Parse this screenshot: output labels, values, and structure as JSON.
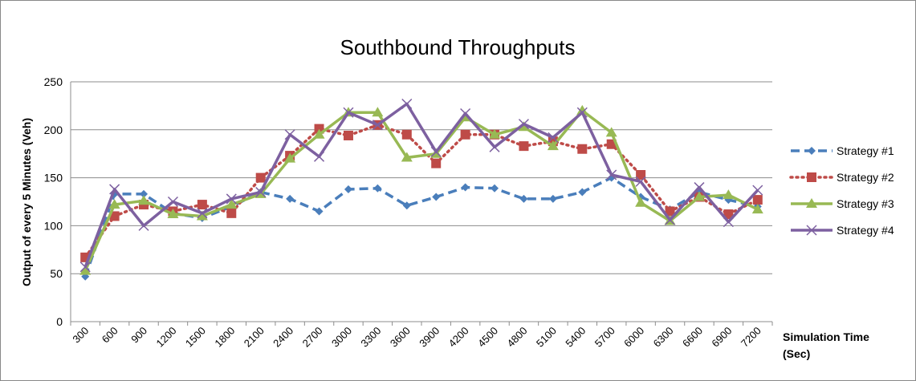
{
  "chart_data": {
    "type": "line",
    "title": "Southbound Throughputs",
    "y_label": "Output of every  5 Minutes  (Veh)",
    "x_label": "Simulation Time (Sec)",
    "categories": [
      "300",
      "600",
      "900",
      "1200",
      "1500",
      "1800",
      "2100",
      "2400",
      "2700",
      "3000",
      "3300",
      "3600",
      "3900",
      "4200",
      "4500",
      "4800",
      "5100",
      "5400",
      "5700",
      "6000",
      "6300",
      "6600",
      "6900",
      "7200"
    ],
    "series": [
      {
        "name": "Strategy #1",
        "color": "#4a7ebb",
        "style": "dashed",
        "marker": "diamond",
        "values": [
          47,
          133,
          133,
          113,
          108,
          120,
          135,
          128,
          115,
          138,
          139,
          121,
          130,
          140,
          139,
          128,
          128,
          135,
          150,
          130,
          117,
          135,
          127,
          120
        ]
      },
      {
        "name": "Strategy #2",
        "color": "#be4b48",
        "style": "dotted",
        "marker": "square",
        "values": [
          67,
          110,
          122,
          115,
          122,
          113,
          150,
          173,
          201,
          194,
          205,
          195,
          165,
          195,
          195,
          183,
          188,
          180,
          185,
          153,
          115,
          130,
          112,
          127
        ]
      },
      {
        "name": "Strategy #3",
        "color": "#98b954",
        "style": "solid",
        "marker": "triangle",
        "values": [
          53,
          122,
          126,
          112,
          110,
          122,
          133,
          170,
          195,
          218,
          218,
          171,
          175,
          213,
          195,
          203,
          183,
          220,
          197,
          124,
          105,
          130,
          132,
          117
        ]
      },
      {
        "name": "Strategy #4",
        "color": "#7d60a0",
        "style": "solid",
        "marker": "x",
        "values": [
          57,
          138,
          100,
          125,
          113,
          128,
          135,
          195,
          172,
          218,
          205,
          227,
          177,
          217,
          182,
          206,
          192,
          218,
          153,
          146,
          106,
          140,
          104,
          137
        ]
      }
    ],
    "ylim": [
      0,
      250
    ],
    "yticks": [
      0,
      50,
      100,
      150,
      200,
      250
    ],
    "grid": true,
    "legend": "right"
  }
}
